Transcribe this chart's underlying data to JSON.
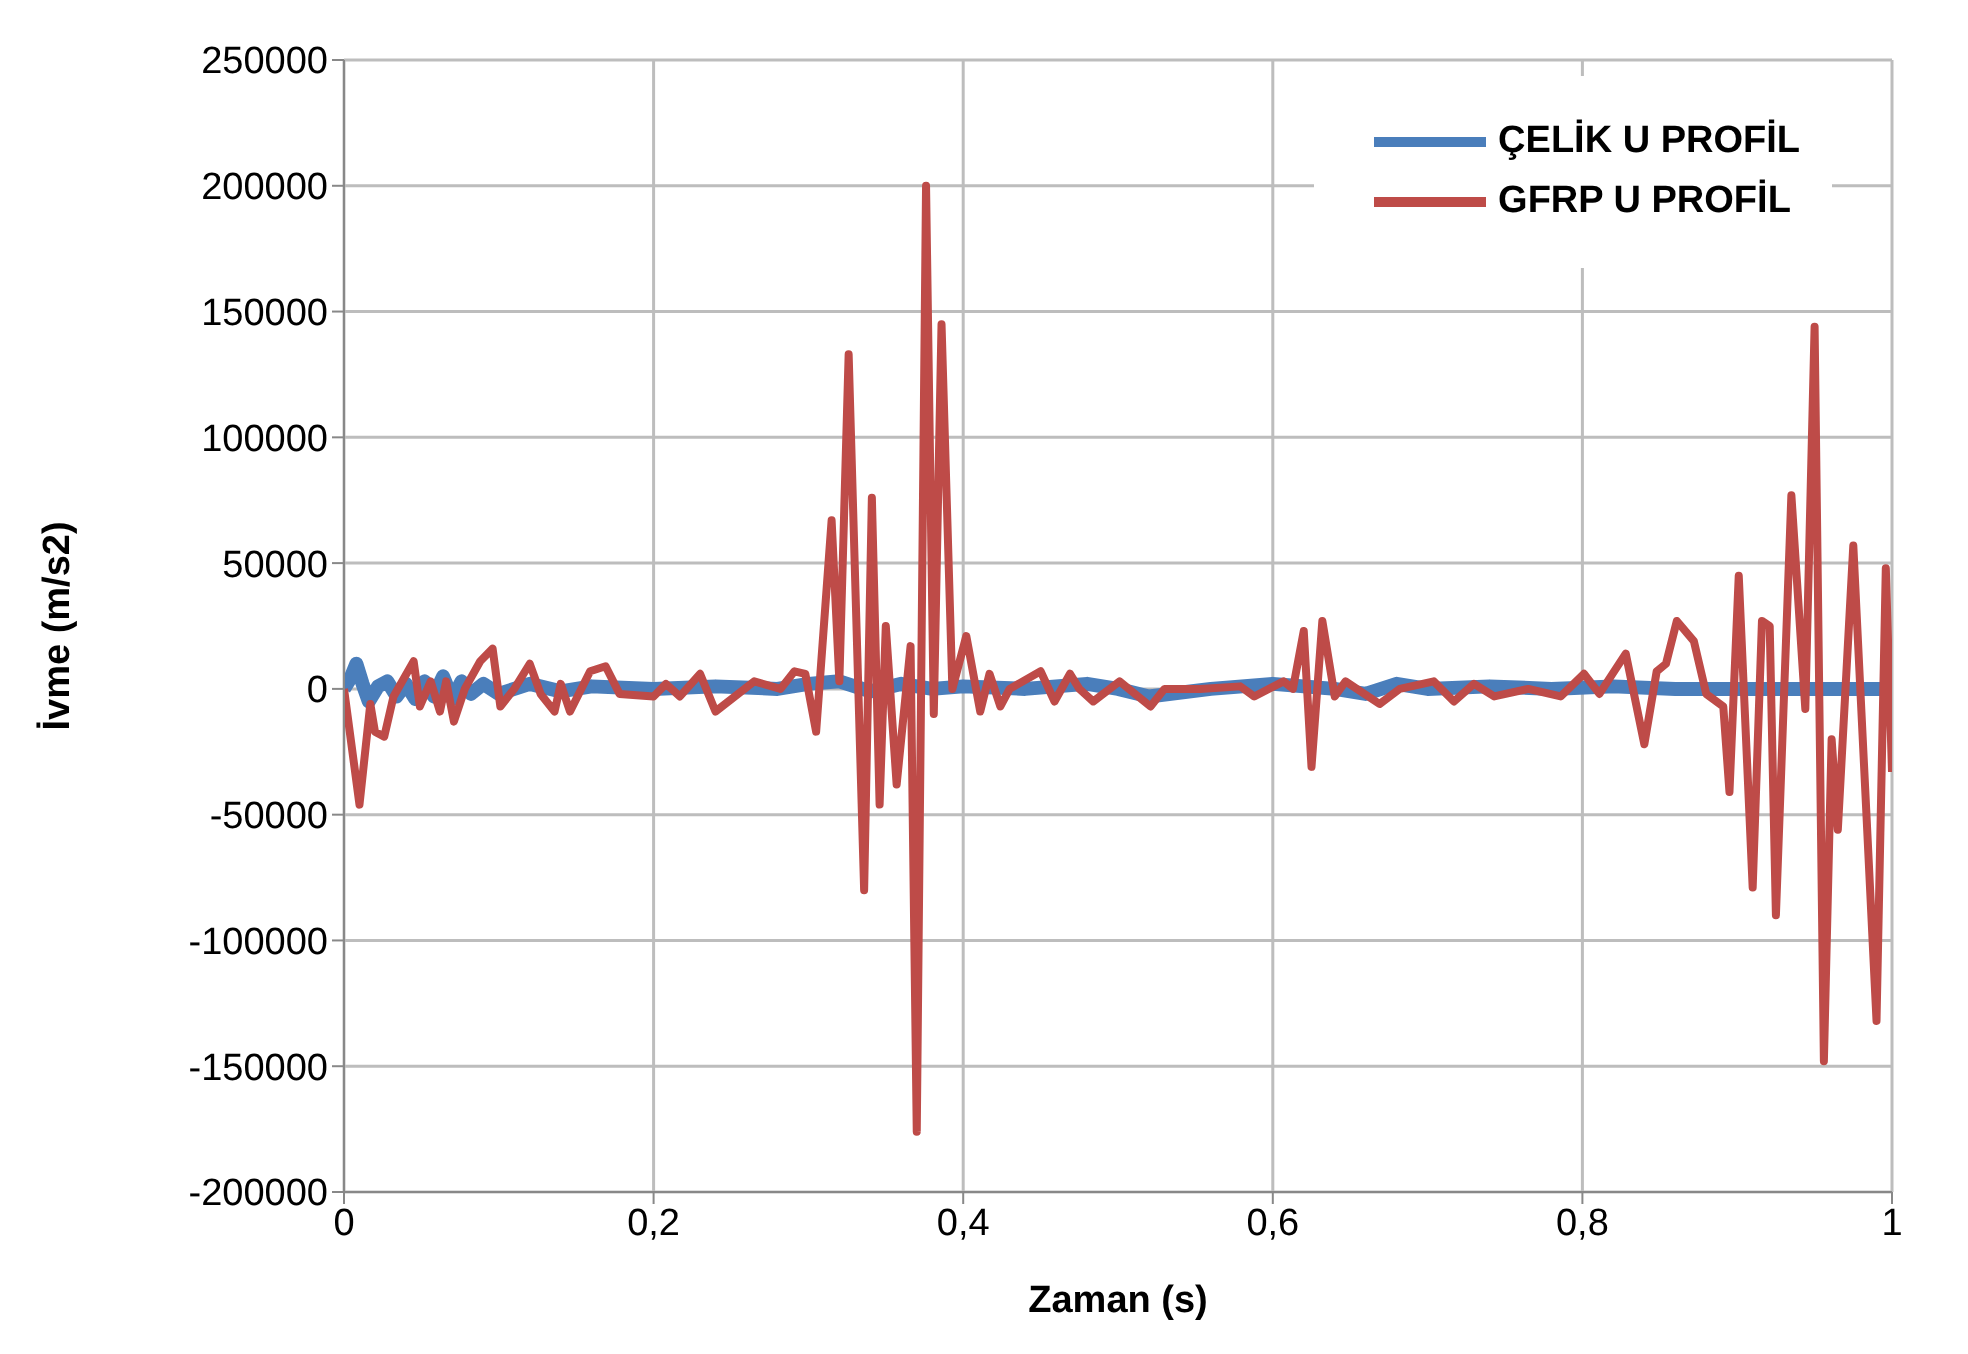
{
  "chart_data": {
    "type": "line",
    "xlabel": "Zaman (s)",
    "ylabel": "İvme (m/s2)",
    "xlim": [
      0,
      1
    ],
    "xticks": [
      0,
      {
        "value": 0.2,
        "label": "0,2"
      },
      {
        "value": 0.4,
        "label": "0,4"
      },
      {
        "value": 0.6,
        "label": "0,6"
      },
      {
        "value": 0.8,
        "label": "0,8"
      },
      1
    ],
    "ylim": [
      -200000,
      250000
    ],
    "yticks": [
      -200000,
      -150000,
      -100000,
      -50000,
      0,
      50000,
      100000,
      150000,
      200000,
      250000
    ],
    "grid": true,
    "legend": "top right",
    "marker": "none",
    "line_style": "solid",
    "series": [
      {
        "name": "ÇELİK U PROFİL",
        "color": "#4a7ebb",
        "x": [
          0,
          0.004,
          0.008,
          0.012,
          0.016,
          0.022,
          0.028,
          0.034,
          0.04,
          0.046,
          0.052,
          0.058,
          0.064,
          0.07,
          0.076,
          0.082,
          0.09,
          0.1,
          0.12,
          0.14,
          0.16,
          0.2,
          0.24,
          0.28,
          0.3,
          0.32,
          0.34,
          0.36,
          0.38,
          0.4,
          0.44,
          0.48,
          0.5,
          0.52,
          0.56,
          0.6,
          0.64,
          0.66,
          0.68,
          0.7,
          0.74,
          0.78,
          0.82,
          0.86,
          0.9,
          0.95,
          1
        ],
        "values": [
          0,
          4000,
          10000,
          2000,
          -5000,
          1000,
          3000,
          -3000,
          2000,
          -4000,
          3000,
          -3000,
          5000,
          -4000,
          3000,
          -2000,
          2000,
          -2000,
          2000,
          -1000,
          1000,
          0,
          1000,
          0,
          2000,
          3000,
          -1000,
          2000,
          0,
          1000,
          0,
          2000,
          0,
          -3000,
          0,
          2000,
          0,
          -2000,
          2000,
          0,
          1000,
          0,
          1000,
          0,
          0,
          0,
          0
        ]
      },
      {
        "name": "GFRP U PROFİL",
        "color": "#be4b48",
        "x": [
          0,
          0.01,
          0.017,
          0.02,
          0.026,
          0.032,
          0.045,
          0.049,
          0.056,
          0.062,
          0.066,
          0.071,
          0.078,
          0.088,
          0.096,
          0.101,
          0.11,
          0.12,
          0.127,
          0.136,
          0.14,
          0.146,
          0.159,
          0.169,
          0.178,
          0.2,
          0.208,
          0.217,
          0.23,
          0.24,
          0.265,
          0.282,
          0.291,
          0.298,
          0.305,
          0.315,
          0.32,
          0.326,
          0.336,
          0.341,
          0.346,
          0.35,
          0.357,
          0.366,
          0.37,
          0.376,
          0.381,
          0.386,
          0.393,
          0.402,
          0.411,
          0.417,
          0.424,
          0.43,
          0.45,
          0.459,
          0.469,
          0.475,
          0.484,
          0.501,
          0.521,
          0.53,
          0.553,
          0.579,
          0.588,
          0.607,
          0.613,
          0.62,
          0.625,
          0.632,
          0.64,
          0.647,
          0.669,
          0.682,
          0.704,
          0.717,
          0.73,
          0.743,
          0.765,
          0.786,
          0.801,
          0.811,
          0.828,
          0.84,
          0.848,
          0.854,
          0.861,
          0.872,
          0.88,
          0.891,
          0.895,
          0.901,
          0.91,
          0.916,
          0.921,
          0.925,
          0.935,
          0.944,
          0.95,
          0.956,
          0.961,
          0.965,
          0.975,
          0.99,
          0.996,
          1
        ],
        "values": [
          0,
          -46000,
          -6000,
          -17000,
          -19000,
          -3000,
          11000,
          -7000,
          3000,
          -9000,
          3000,
          -13000,
          0,
          11000,
          16000,
          -7000,
          0,
          10000,
          -2000,
          -9000,
          2000,
          -9000,
          7000,
          9000,
          -2000,
          -3000,
          2000,
          -3000,
          6000,
          -9000,
          3000,
          0,
          7000,
          6000,
          -17000,
          67000,
          3000,
          133000,
          -80000,
          76000,
          -46000,
          25000,
          -38000,
          17000,
          -176000,
          200000,
          -10000,
          145000,
          0,
          21000,
          -9000,
          6000,
          -7000,
          0,
          7000,
          -5000,
          6000,
          0,
          -5000,
          3000,
          -7000,
          0,
          0,
          1000,
          -3000,
          3000,
          0,
          23000,
          -31000,
          27000,
          -3000,
          3000,
          -6000,
          0,
          3000,
          -5000,
          2000,
          -3000,
          0,
          -3000,
          6000,
          -2000,
          14000,
          -22000,
          7000,
          10000,
          27000,
          19000,
          -2000,
          -7000,
          -41000,
          45000,
          -79000,
          27000,
          25000,
          -90000,
          77000,
          -8000,
          144000,
          -148000,
          -20000,
          -56000,
          57000,
          -132000,
          48000,
          -33000
        ]
      }
    ]
  }
}
